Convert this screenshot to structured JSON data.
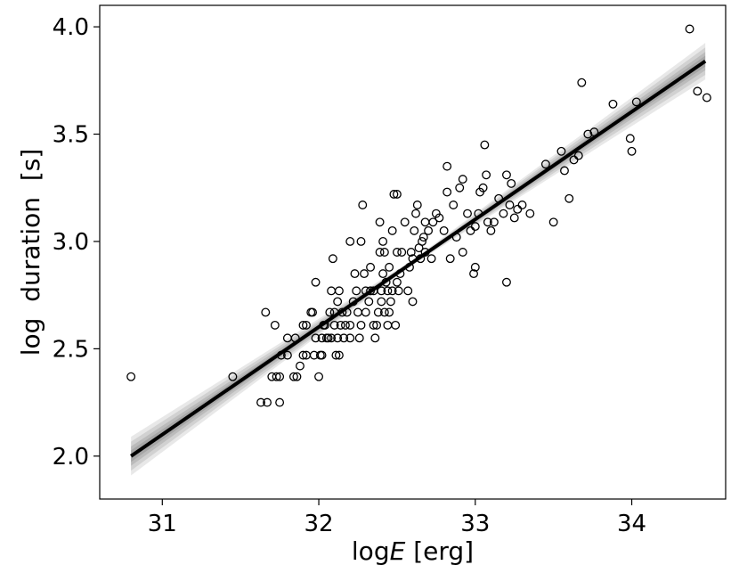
{
  "chart_data": {
    "type": "scatter",
    "xlabel": "logE [erg]",
    "xlabel_parts": {
      "prefix": "log",
      "italic": "E",
      "suffix": " [erg]"
    },
    "ylabel": "log  duration  [s]",
    "xlim": [
      30.6,
      34.6
    ],
    "ylim": [
      1.8,
      4.1
    ],
    "xticks": [
      31,
      32,
      33,
      34
    ],
    "yticks": [
      2.0,
      2.5,
      3.0,
      3.5,
      4.0
    ],
    "xtick_labels": [
      "31",
      "32",
      "33",
      "34"
    ],
    "ytick_labels": [
      "2.0",
      "2.5",
      "3.0",
      "3.5",
      "4.0"
    ],
    "grid": false,
    "legend": "none",
    "colors": {
      "points": "#000000",
      "fit": "#000000",
      "band": "#808080"
    },
    "fit_line": {
      "x": [
        30.8,
        34.47
      ],
      "y": [
        2.0,
        3.84
      ]
    },
    "band_halfwidth": {
      "x": [
        30.8,
        32.6,
        34.47
      ],
      "half": [
        0.09,
        0.012,
        0.085
      ]
    },
    "points": [
      [
        30.8,
        2.37
      ],
      [
        31.45,
        2.37
      ],
      [
        31.63,
        2.25
      ],
      [
        31.67,
        2.25
      ],
      [
        31.75,
        2.25
      ],
      [
        31.66,
        2.67
      ],
      [
        31.72,
        2.61
      ],
      [
        31.7,
        2.37
      ],
      [
        31.73,
        2.37
      ],
      [
        31.75,
        2.37
      ],
      [
        31.76,
        2.47
      ],
      [
        31.8,
        2.47
      ],
      [
        31.8,
        2.55
      ],
      [
        31.85,
        2.55
      ],
      [
        31.84,
        2.37
      ],
      [
        31.86,
        2.37
      ],
      [
        31.88,
        2.42
      ],
      [
        31.9,
        2.47
      ],
      [
        31.92,
        2.47
      ],
      [
        31.9,
        2.61
      ],
      [
        31.92,
        2.61
      ],
      [
        31.95,
        2.67
      ],
      [
        31.96,
        2.67
      ],
      [
        31.97,
        2.47
      ],
      [
        31.98,
        2.55
      ],
      [
        31.98,
        2.81
      ],
      [
        32.0,
        2.37
      ],
      [
        32.01,
        2.47
      ],
      [
        32.02,
        2.47
      ],
      [
        32.02,
        2.55
      ],
      [
        32.03,
        2.61
      ],
      [
        32.04,
        2.61
      ],
      [
        32.05,
        2.55
      ],
      [
        32.06,
        2.55
      ],
      [
        32.07,
        2.67
      ],
      [
        32.08,
        2.55
      ],
      [
        32.08,
        2.77
      ],
      [
        32.09,
        2.92
      ],
      [
        32.1,
        2.61
      ],
      [
        32.1,
        2.67
      ],
      [
        32.11,
        2.47
      ],
      [
        32.12,
        2.55
      ],
      [
        32.12,
        2.72
      ],
      [
        32.13,
        2.47
      ],
      [
        32.13,
        2.77
      ],
      [
        32.14,
        2.61
      ],
      [
        32.15,
        2.67
      ],
      [
        32.16,
        2.55
      ],
      [
        32.17,
        2.61
      ],
      [
        32.18,
        2.67
      ],
      [
        32.2,
        2.55
      ],
      [
        32.2,
        2.61
      ],
      [
        32.2,
        3.0
      ],
      [
        32.22,
        2.72
      ],
      [
        32.23,
        2.85
      ],
      [
        32.24,
        2.77
      ],
      [
        32.25,
        2.67
      ],
      [
        32.26,
        2.55
      ],
      [
        32.27,
        2.61
      ],
      [
        32.27,
        3.0
      ],
      [
        32.28,
        3.17
      ],
      [
        32.29,
        2.85
      ],
      [
        32.3,
        2.67
      ],
      [
        32.3,
        2.77
      ],
      [
        32.32,
        2.72
      ],
      [
        32.33,
        2.77
      ],
      [
        32.33,
        2.88
      ],
      [
        32.35,
        2.61
      ],
      [
        32.35,
        2.77
      ],
      [
        32.36,
        2.55
      ],
      [
        32.37,
        2.61
      ],
      [
        32.38,
        2.67
      ],
      [
        32.39,
        2.95
      ],
      [
        32.39,
        3.09
      ],
      [
        32.4,
        2.72
      ],
      [
        32.4,
        2.77
      ],
      [
        32.41,
        2.85
      ],
      [
        32.41,
        3.0
      ],
      [
        32.42,
        2.67
      ],
      [
        32.42,
        2.95
      ],
      [
        32.43,
        2.81
      ],
      [
        32.44,
        2.61
      ],
      [
        32.44,
        2.77
      ],
      [
        32.45,
        2.67
      ],
      [
        32.45,
        2.88
      ],
      [
        32.46,
        2.72
      ],
      [
        32.47,
        2.77
      ],
      [
        32.47,
        3.05
      ],
      [
        32.48,
        3.22
      ],
      [
        32.49,
        2.61
      ],
      [
        32.5,
        2.81
      ],
      [
        32.5,
        2.95
      ],
      [
        32.5,
        3.22
      ],
      [
        32.51,
        2.77
      ],
      [
        32.52,
        2.85
      ],
      [
        32.53,
        2.95
      ],
      [
        32.55,
        3.09
      ],
      [
        32.57,
        2.77
      ],
      [
        32.58,
        2.88
      ],
      [
        32.59,
        2.95
      ],
      [
        32.6,
        2.72
      ],
      [
        32.6,
        2.92
      ],
      [
        32.61,
        3.05
      ],
      [
        32.62,
        3.13
      ],
      [
        32.63,
        3.17
      ],
      [
        32.64,
        2.97
      ],
      [
        32.65,
        2.92
      ],
      [
        32.66,
        3.0
      ],
      [
        32.67,
        3.02
      ],
      [
        32.68,
        2.95
      ],
      [
        32.68,
        3.09
      ],
      [
        32.7,
        3.05
      ],
      [
        32.72,
        2.92
      ],
      [
        32.73,
        3.09
      ],
      [
        32.75,
        3.13
      ],
      [
        32.77,
        3.11
      ],
      [
        32.8,
        3.05
      ],
      [
        32.82,
        3.23
      ],
      [
        32.82,
        3.35
      ],
      [
        32.84,
        2.92
      ],
      [
        32.86,
        3.17
      ],
      [
        32.88,
        3.02
      ],
      [
        32.9,
        3.25
      ],
      [
        32.92,
        2.95
      ],
      [
        32.92,
        3.29
      ],
      [
        32.95,
        3.13
      ],
      [
        32.97,
        3.05
      ],
      [
        32.99,
        2.85
      ],
      [
        33.0,
        2.88
      ],
      [
        33.0,
        3.07
      ],
      [
        33.02,
        3.13
      ],
      [
        33.03,
        3.23
      ],
      [
        33.05,
        3.25
      ],
      [
        33.06,
        3.45
      ],
      [
        33.07,
        3.31
      ],
      [
        33.08,
        3.09
      ],
      [
        33.1,
        3.05
      ],
      [
        33.12,
        3.09
      ],
      [
        33.15,
        3.2
      ],
      [
        33.18,
        3.13
      ],
      [
        33.2,
        3.31
      ],
      [
        33.2,
        2.81
      ],
      [
        33.22,
        3.17
      ],
      [
        33.23,
        3.27
      ],
      [
        33.25,
        3.11
      ],
      [
        33.27,
        3.15
      ],
      [
        33.3,
        3.17
      ],
      [
        33.35,
        3.13
      ],
      [
        33.45,
        3.36
      ],
      [
        33.5,
        3.09
      ],
      [
        33.55,
        3.42
      ],
      [
        33.57,
        3.33
      ],
      [
        33.6,
        3.2
      ],
      [
        33.63,
        3.38
      ],
      [
        33.66,
        3.4
      ],
      [
        33.68,
        3.74
      ],
      [
        33.72,
        3.5
      ],
      [
        33.76,
        3.51
      ],
      [
        33.88,
        3.64
      ],
      [
        33.99,
        3.48
      ],
      [
        34.0,
        3.42
      ],
      [
        34.03,
        3.65
      ],
      [
        34.37,
        3.99
      ],
      [
        34.42,
        3.7
      ],
      [
        34.48,
        3.67
      ]
    ]
  }
}
